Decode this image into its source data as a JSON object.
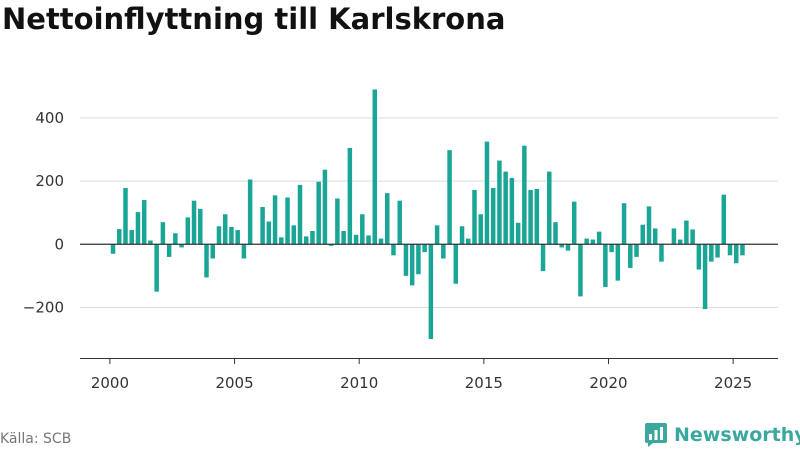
{
  "chart_data": {
    "type": "bar",
    "title": "Nettoinflyttning till Karlskrona",
    "xlabel": "",
    "ylabel": "",
    "ylim": [
      -360,
      520
    ],
    "xlim": [
      1998.8,
      2026.8
    ],
    "yticks": [
      {
        "value": 400,
        "label": "400"
      },
      {
        "value": 200,
        "label": "200"
      },
      {
        "value": 0,
        "label": "0"
      },
      {
        "value": -200,
        "label": "−200"
      }
    ],
    "xticks": [
      {
        "value": 2000,
        "label": "2000"
      },
      {
        "value": 2005,
        "label": "2005"
      },
      {
        "value": 2010,
        "label": "2010"
      },
      {
        "value": 2015,
        "label": "2015"
      },
      {
        "value": 2020,
        "label": "2020"
      },
      {
        "value": 2025,
        "label": "2025"
      }
    ],
    "frequency": "quarterly",
    "start": {
      "year": 2000,
      "quarter": 1
    },
    "values": [
      -30,
      48,
      178,
      45,
      102,
      140,
      12,
      -150,
      70,
      -40,
      35,
      -10,
      85,
      138,
      112,
      -105,
      -45,
      57,
      95,
      55,
      45,
      -45,
      205,
      0,
      118,
      72,
      155,
      22,
      148,
      60,
      188,
      25,
      42,
      198,
      236,
      -5,
      145,
      42,
      305,
      30,
      95,
      28,
      490,
      18,
      162,
      -35,
      138,
      -100,
      -130,
      -95,
      -25,
      -300,
      60,
      -45,
      298,
      -125,
      57,
      18,
      172,
      95,
      325,
      178,
      265,
      230,
      210,
      68,
      312,
      172,
      175,
      -85,
      230,
      70,
      -10,
      -20,
      135,
      -165,
      18,
      15,
      40,
      -135,
      -25,
      -115,
      130,
      -75,
      -40,
      62,
      120,
      50,
      -55,
      0,
      50,
      15,
      75,
      47,
      -80,
      -205,
      -55,
      -42,
      157,
      -35,
      -60,
      -35
    ],
    "bar_color": "#1aa597",
    "grid": true,
    "legend": "none"
  },
  "footer": {
    "source": "Källa: SCB",
    "brand": "Newsworthy"
  },
  "colors": {
    "bar": "#1aa597",
    "brand": "#3aa89e",
    "grid": "#dddddd",
    "axis": "#333333"
  }
}
